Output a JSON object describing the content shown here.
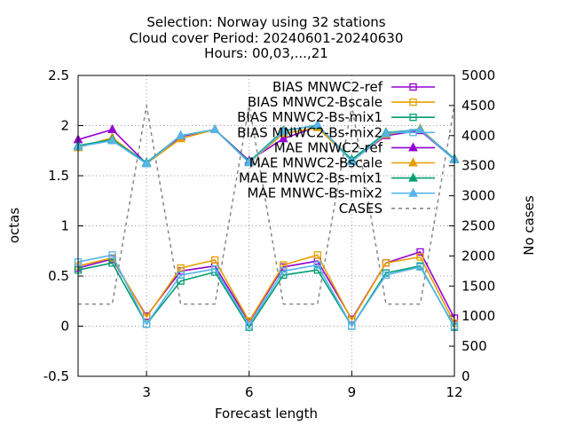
{
  "title_lines": [
    "Selection: Norway using    32 stations",
    "Cloud cover   Period: 20240601-20240630",
    "Hours: 00,03,...,21"
  ],
  "chart_data": {
    "type": "line",
    "title": "Selection: Norway using    32 stations / Cloud cover   Period: 20240601-20240630 / Hours: 00,03,...,21",
    "xlabel": "Forecast length",
    "ylabel": "octas",
    "y2label": "No cases",
    "xlim": [
      1,
      12
    ],
    "ylim": [
      -0.5,
      2.5
    ],
    "y2lim": [
      0,
      5000
    ],
    "xticks": [
      3,
      6,
      9,
      12
    ],
    "yticks": [
      -0.5,
      0,
      0.5,
      1,
      1.5,
      2,
      2.5
    ],
    "y2ticks": [
      0,
      500,
      1000,
      1500,
      2000,
      2500,
      3000,
      3500,
      4000,
      4500,
      5000
    ],
    "grid": true,
    "legend_position": "top-right",
    "x": [
      1,
      2,
      3,
      4,
      5,
      6,
      7,
      8,
      9,
      10,
      11,
      12
    ],
    "series": [
      {
        "name": "BIAS MNWC2-ref",
        "axis": "y",
        "color": "#9400d3",
        "marker": "square-open",
        "dash": false,
        "values": [
          0.58,
          0.67,
          0.1,
          0.55,
          0.6,
          0.04,
          0.59,
          0.65,
          0.07,
          0.63,
          0.74,
          0.08
        ]
      },
      {
        "name": "BIAS MNWC2-Bscale",
        "axis": "y",
        "color": "#e69f00",
        "marker": "square-open",
        "dash": false,
        "values": [
          0.6,
          0.68,
          0.09,
          0.58,
          0.66,
          0.05,
          0.61,
          0.71,
          0.06,
          0.63,
          0.69,
          0.03
        ]
      },
      {
        "name": "BIAS MNWC2-Bs-mix1",
        "axis": "y",
        "color": "#009e73",
        "marker": "square-open",
        "dash": false,
        "values": [
          0.56,
          0.63,
          0.02,
          0.45,
          0.54,
          -0.01,
          0.51,
          0.56,
          0.0,
          0.53,
          0.6,
          -0.01
        ]
      },
      {
        "name": "BIAS MNWC2-Bs-mix2",
        "axis": "y",
        "color": "#56b4e9",
        "marker": "square-open",
        "dash": false,
        "values": [
          0.64,
          0.71,
          0.02,
          0.51,
          0.57,
          0.01,
          0.55,
          0.61,
          0.0,
          0.51,
          0.59,
          0.0
        ]
      },
      {
        "name": "MAE MNWC2-ref",
        "axis": "y",
        "color": "#9400d3",
        "marker": "triangle",
        "dash": false,
        "values": [
          1.86,
          1.96,
          1.62,
          1.89,
          1.96,
          1.65,
          1.87,
          1.99,
          1.65,
          1.9,
          1.95,
          1.66
        ]
      },
      {
        "name": "MAE MNWC2-Bscale",
        "axis": "y",
        "color": "#e69f00",
        "marker": "triangle",
        "dash": false,
        "values": [
          1.78,
          1.88,
          1.62,
          1.87,
          1.96,
          1.63,
          1.92,
          1.98,
          1.65,
          1.91,
          1.97,
          1.66
        ]
      },
      {
        "name": "MAE MNWC2-Bs-mix1",
        "axis": "y",
        "color": "#009e73",
        "marker": "triangle",
        "dash": false,
        "values": [
          1.8,
          1.86,
          1.63,
          1.9,
          1.96,
          1.64,
          1.95,
          2.0,
          1.66,
          1.93,
          1.96,
          1.67
        ]
      },
      {
        "name": "MAE MNWC-Bs-mix2",
        "axis": "y",
        "color": "#56b4e9",
        "marker": "triangle",
        "dash": false,
        "values": [
          1.79,
          1.85,
          1.62,
          1.9,
          1.96,
          1.63,
          1.94,
          2.01,
          1.64,
          1.92,
          1.96,
          1.66
        ]
      },
      {
        "name": "CASES",
        "axis": "y2",
        "color": "#888888",
        "marker": "none",
        "dash": true,
        "values": [
          1200,
          1200,
          4500,
          1200,
          1200,
          4500,
          1200,
          1200,
          4500,
          1200,
          1200,
          4500
        ]
      }
    ]
  }
}
